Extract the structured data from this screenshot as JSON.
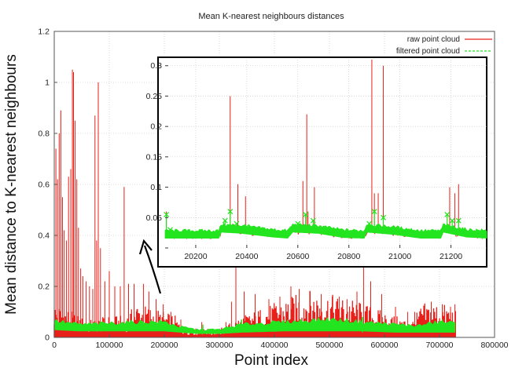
{
  "chart_data": {
    "type": "line",
    "title": "Mean K-nearest neighbours distances",
    "xlabel": "Point index",
    "ylabel": "Mean distance to K-nearest neighbours",
    "xlim": [
      0,
      800000
    ],
    "ylim": [
      0,
      1.2
    ],
    "x_ticks": [
      "0",
      "100000",
      "200000",
      "300000",
      "400000",
      "500000",
      "600000",
      "700000",
      "800000"
    ],
    "y_ticks": [
      "0",
      "0.2",
      "0.4",
      "0.6",
      "0.8",
      "1",
      "1.2"
    ],
    "grid": true,
    "legend_position": "top-right",
    "colors": {
      "raw": "#e8201a",
      "filtered": "#22e51f"
    },
    "series": [
      {
        "name": "raw point cloud",
        "style": "solid",
        "baseline": [
          [
            0,
            0.08
          ],
          [
            20000,
            0.07
          ],
          [
            45000,
            0.05
          ],
          [
            60000,
            0.04
          ],
          [
            100000,
            0.05
          ],
          [
            130000,
            0.05
          ],
          [
            150000,
            0.08
          ],
          [
            180000,
            0.07
          ],
          [
            200000,
            0.06
          ],
          [
            220000,
            0.05
          ],
          [
            230000,
            0.03
          ],
          [
            260000,
            0.02
          ],
          [
            300000,
            0.02
          ],
          [
            340000,
            0.05
          ],
          [
            380000,
            0.07
          ],
          [
            420000,
            0.09
          ],
          [
            460000,
            0.11
          ],
          [
            500000,
            0.1
          ],
          [
            540000,
            0.09
          ],
          [
            580000,
            0.07
          ],
          [
            620000,
            0.05
          ],
          [
            650000,
            0.04
          ],
          [
            670000,
            0.08
          ],
          [
            700000,
            0.08
          ],
          [
            730000,
            0.07
          ]
        ],
        "spikes": [
          [
            3000,
            0.74
          ],
          [
            6000,
            0.62
          ],
          [
            9000,
            0.8
          ],
          [
            12000,
            0.89
          ],
          [
            15000,
            0.55
          ],
          [
            18000,
            0.42
          ],
          [
            22000,
            0.38
          ],
          [
            26000,
            0.63
          ],
          [
            30000,
            0.66
          ],
          [
            33000,
            1.05
          ],
          [
            35000,
            1.04
          ],
          [
            38000,
            0.85
          ],
          [
            41000,
            0.62
          ],
          [
            44000,
            0.43
          ],
          [
            48000,
            0.27
          ],
          [
            52000,
            0.24
          ],
          [
            58000,
            0.22
          ],
          [
            64000,
            0.2
          ],
          [
            70000,
            0.19
          ],
          [
            74000,
            0.87
          ],
          [
            77000,
            0.38
          ],
          [
            80000,
            1.0
          ],
          [
            84000,
            0.35
          ],
          [
            92000,
            0.22
          ],
          [
            100000,
            0.26
          ],
          [
            110000,
            0.2
          ],
          [
            120000,
            0.2
          ],
          [
            127000,
            0.59
          ],
          [
            135000,
            0.21
          ],
          [
            145000,
            0.21
          ],
          [
            150000,
            0.11
          ],
          [
            162000,
            0.21
          ],
          [
            172000,
            0.18
          ],
          [
            185000,
            0.15
          ],
          [
            198000,
            0.13
          ],
          [
            212000,
            0.1
          ],
          [
            230000,
            0.07
          ],
          [
            268000,
            0.06
          ],
          [
            312000,
            0.06
          ],
          [
            322000,
            0.14
          ],
          [
            330000,
            0.29
          ],
          [
            345000,
            0.18
          ],
          [
            365000,
            0.17
          ],
          [
            390000,
            0.15
          ],
          [
            410000,
            0.16
          ],
          [
            430000,
            0.2
          ],
          [
            445000,
            0.19
          ],
          [
            465000,
            0.18
          ],
          [
            485000,
            0.17
          ],
          [
            505000,
            0.16
          ],
          [
            518000,
            0.16
          ],
          [
            532000,
            0.15
          ],
          [
            550000,
            0.18
          ],
          [
            562000,
            0.28
          ],
          [
            575000,
            0.22
          ],
          [
            595000,
            0.17
          ],
          [
            620000,
            0.12
          ],
          [
            642000,
            0.1
          ],
          [
            655000,
            0.1
          ],
          [
            685000,
            0.14
          ],
          [
            705000,
            0.13
          ],
          [
            720000,
            0.12
          ],
          [
            728000,
            0.13
          ]
        ]
      },
      {
        "name": "filtered point cloud",
        "style": "dashed",
        "band": [
          [
            0,
            0.03,
            0.065
          ],
          [
            45000,
            0.025,
            0.05
          ],
          [
            100000,
            0.025,
            0.055
          ],
          [
            150000,
            0.025,
            0.06
          ],
          [
            200000,
            0.025,
            0.06
          ],
          [
            230000,
            0.02,
            0.04
          ],
          [
            260000,
            0.015,
            0.03
          ],
          [
            300000,
            0.015,
            0.03
          ],
          [
            340000,
            0.02,
            0.05
          ],
          [
            420000,
            0.025,
            0.06
          ],
          [
            500000,
            0.025,
            0.07
          ],
          [
            560000,
            0.025,
            0.06
          ],
          [
            620000,
            0.02,
            0.05
          ],
          [
            660000,
            0.02,
            0.045
          ],
          [
            700000,
            0.02,
            0.06
          ],
          [
            730000,
            0.02,
            0.055
          ]
        ],
        "spikes": [
          [
            270000,
            0.05
          ],
          [
            340000,
            0.07
          ],
          [
            560000,
            0.08
          ],
          [
            705000,
            0.07
          ]
        ]
      }
    ],
    "inset": {
      "xlim": [
        20080,
        21340
      ],
      "ylim": [
        0,
        0.31
      ],
      "x_ticks": [
        "20200",
        "20400",
        "20600",
        "20800",
        "21000",
        "21200"
      ],
      "y_ticks": [
        "0",
        "0.05",
        "0.1",
        "0.15",
        "0.2",
        "0.25",
        "0.3"
      ],
      "raw": {
        "baseline": [
          [
            20080,
            0.02
          ],
          [
            20290,
            0.02
          ],
          [
            20300,
            0.03
          ],
          [
            20380,
            0.028
          ],
          [
            20500,
            0.022
          ],
          [
            20560,
            0.02
          ],
          [
            20580,
            0.03
          ],
          [
            20680,
            0.028
          ],
          [
            20780,
            0.021
          ],
          [
            20860,
            0.02
          ],
          [
            20870,
            0.03
          ],
          [
            20980,
            0.026
          ],
          [
            21080,
            0.02
          ],
          [
            21160,
            0.02
          ],
          [
            21170,
            0.03
          ],
          [
            21260,
            0.022
          ],
          [
            21340,
            0.02
          ]
        ],
        "spikes": [
          [
            20085,
            0.06
          ],
          [
            20335,
            0.25
          ],
          [
            20345,
            0.04
          ],
          [
            20365,
            0.105
          ],
          [
            20395,
            0.085
          ],
          [
            20620,
            0.11
          ],
          [
            20635,
            0.22
          ],
          [
            20640,
            0.06
          ],
          [
            20665,
            0.1
          ],
          [
            20890,
            0.31
          ],
          [
            20900,
            0.09
          ],
          [
            20915,
            0.09
          ],
          [
            20935,
            0.3
          ],
          [
            21195,
            0.1
          ],
          [
            21215,
            0.09
          ],
          [
            21230,
            0.105
          ]
        ]
      },
      "filtered": {
        "baseline": [
          [
            20080,
            0.02
          ],
          [
            20290,
            0.02
          ],
          [
            20300,
            0.03
          ],
          [
            20380,
            0.028
          ],
          [
            20500,
            0.022
          ],
          [
            20560,
            0.02
          ],
          [
            20580,
            0.03
          ],
          [
            20680,
            0.028
          ],
          [
            20780,
            0.021
          ],
          [
            20860,
            0.02
          ],
          [
            20870,
            0.03
          ],
          [
            20980,
            0.026
          ],
          [
            21080,
            0.02
          ],
          [
            21160,
            0.02
          ],
          [
            21170,
            0.03
          ],
          [
            21260,
            0.022
          ],
          [
            21340,
            0.02
          ]
        ],
        "spikes": [
          [
            20085,
            0.055
          ],
          [
            20100,
            0.03
          ],
          [
            20315,
            0.045
          ],
          [
            20335,
            0.06
          ],
          [
            20360,
            0.04
          ],
          [
            20400,
            0.035
          ],
          [
            20600,
            0.04
          ],
          [
            20630,
            0.055
          ],
          [
            20660,
            0.045
          ],
          [
            20880,
            0.04
          ],
          [
            20900,
            0.06
          ],
          [
            20935,
            0.05
          ],
          [
            21185,
            0.055
          ],
          [
            21205,
            0.045
          ],
          [
            21230,
            0.045
          ]
        ]
      }
    }
  }
}
